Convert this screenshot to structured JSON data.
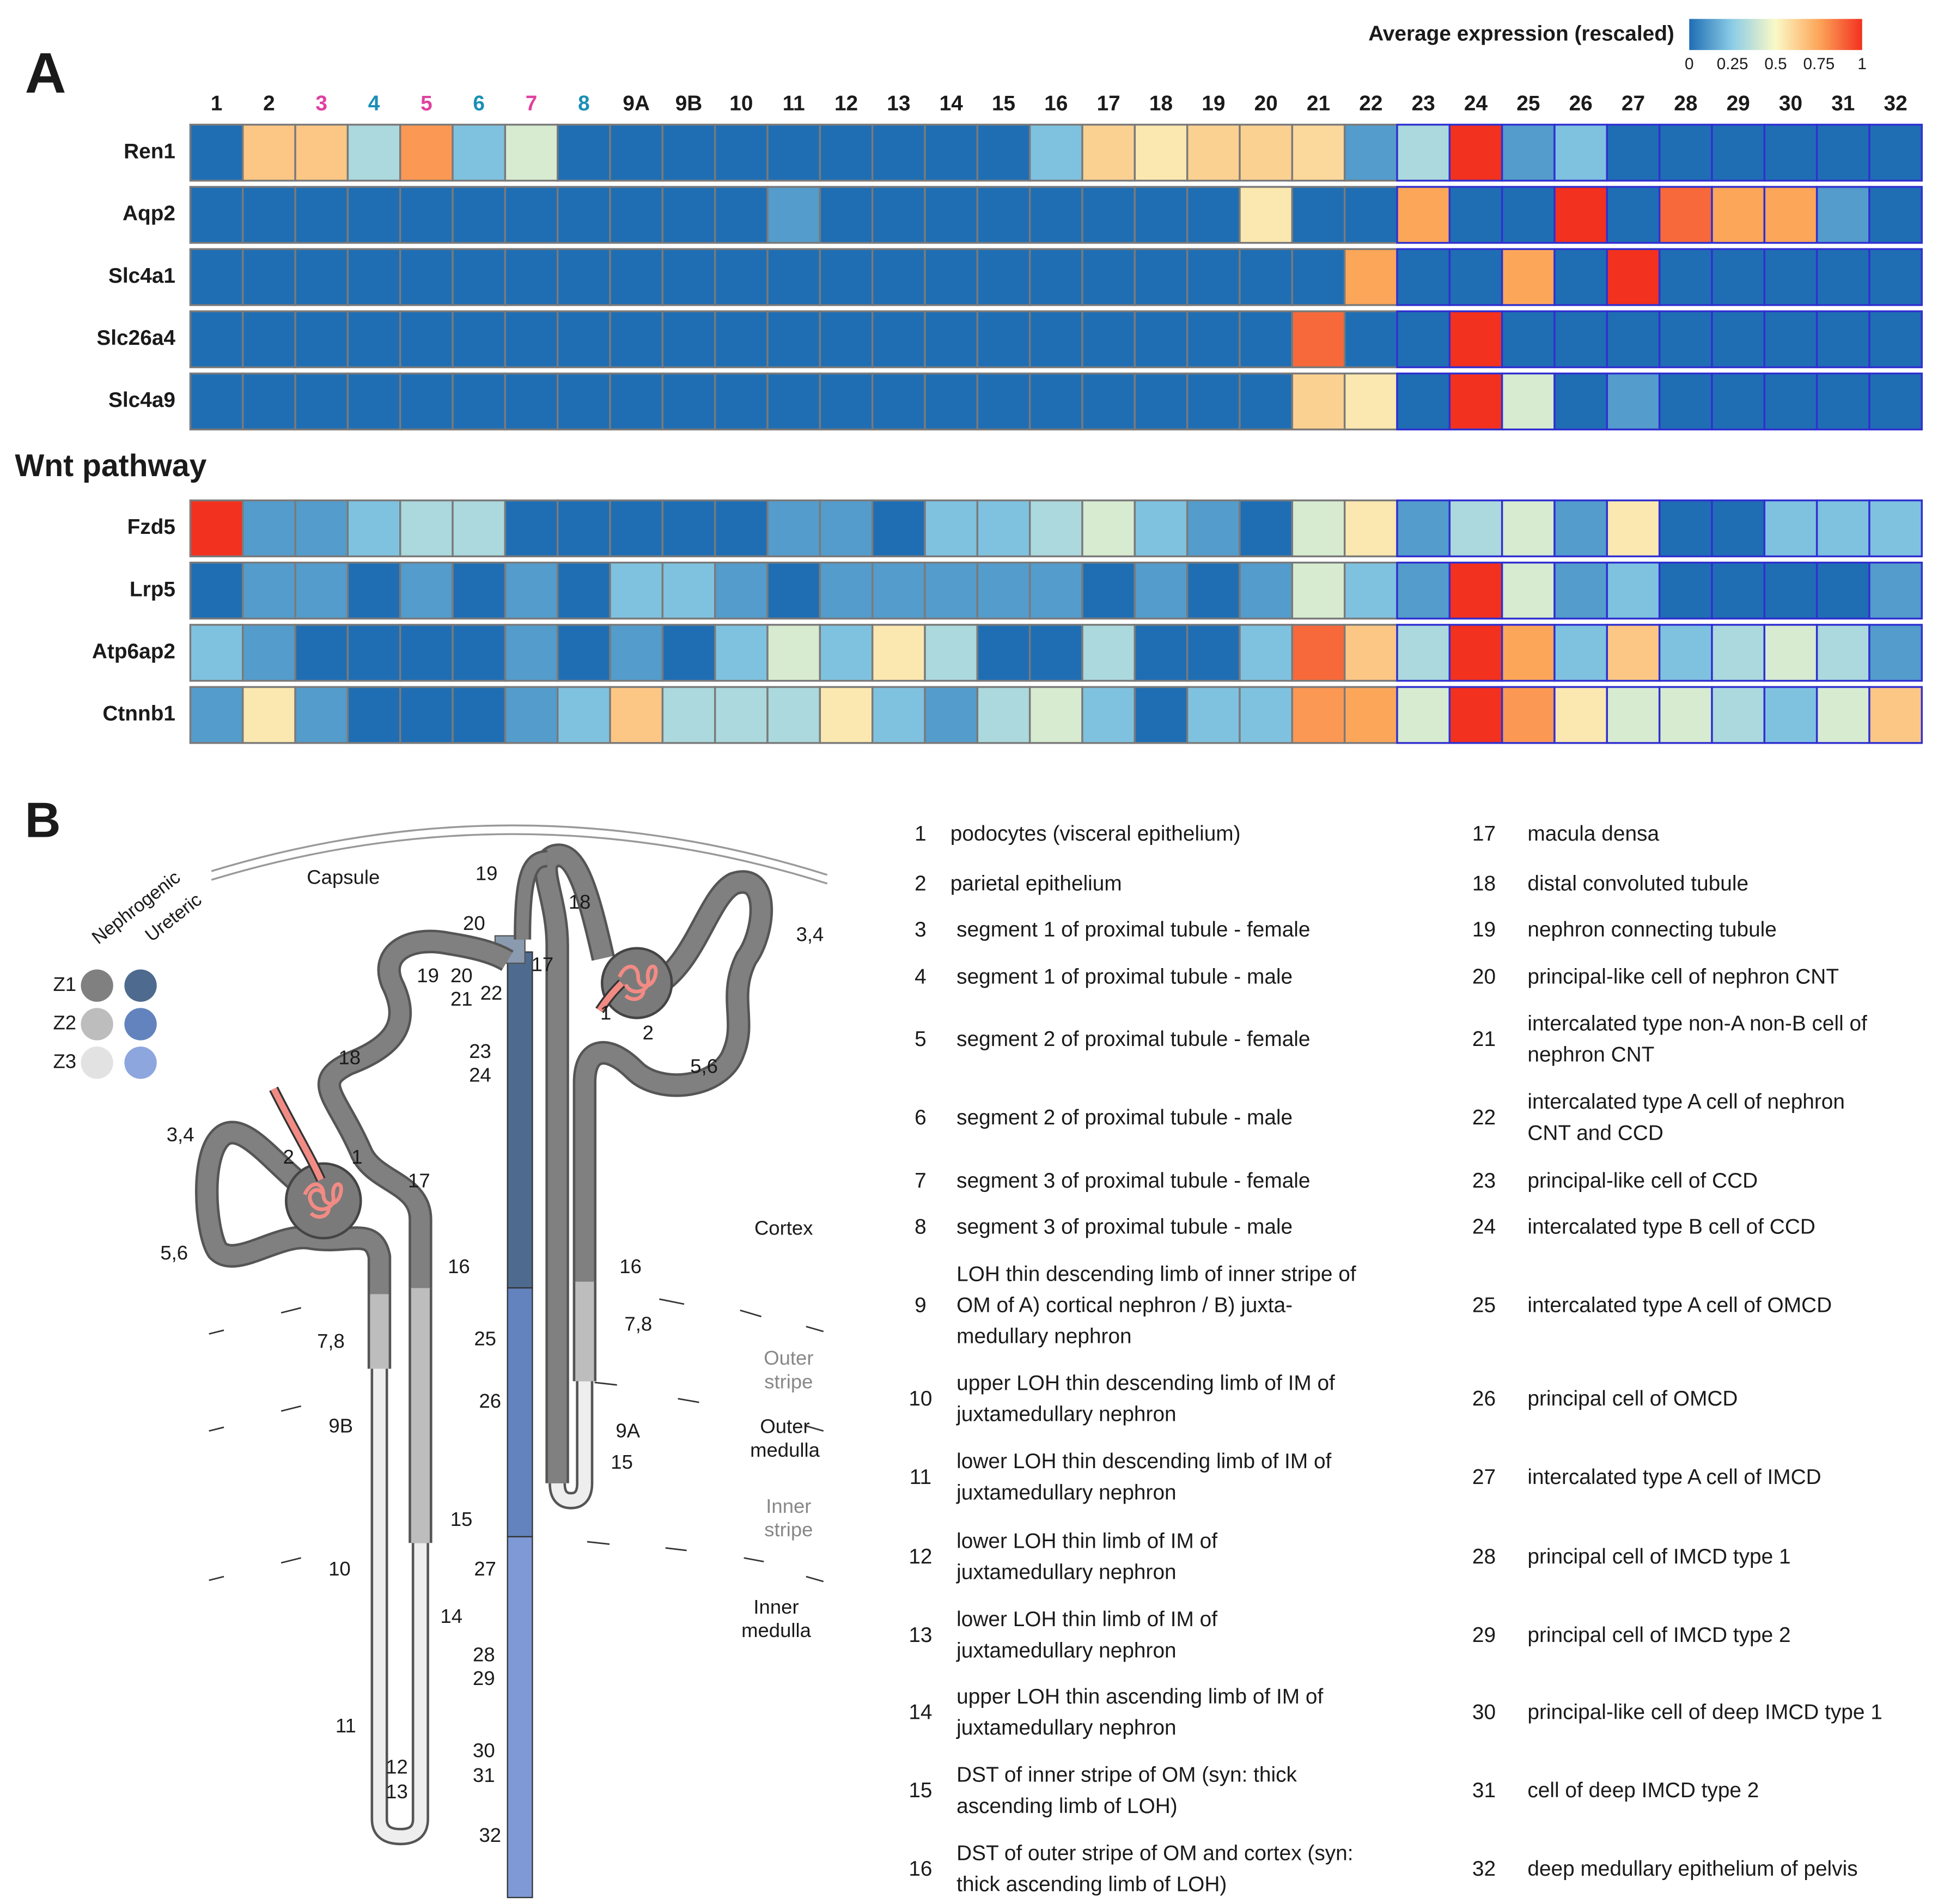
{
  "panel_labels": [
    "A",
    "B"
  ],
  "chart_data": {
    "type": "heatmap",
    "colorbar": {
      "title": "Average expression (rescaled)",
      "ticks": [
        0,
        0.25,
        0.5,
        0.75,
        1
      ],
      "clim": [
        0,
        1
      ],
      "colorscale": [
        "#1f6eb4",
        "#8ccde6",
        "#fbf9c6",
        "#fca65a",
        "#f2311f"
      ]
    },
    "columns": [
      "1",
      "2",
      "3",
      "4",
      "5",
      "6",
      "7",
      "8",
      "9A",
      "9B",
      "10",
      "11",
      "12",
      "13",
      "14",
      "15",
      "16",
      "17",
      "18",
      "19",
      "20",
      "21",
      "22",
      "23",
      "24",
      "25",
      "26",
      "27",
      "28",
      "29",
      "30",
      "31",
      "32"
    ],
    "column_colors": [
      "#1a1a1a",
      "#1a1a1a",
      "#e040a0",
      "#1a8fb5",
      "#e040a0",
      "#1a8fb5",
      "#e040a0",
      "#1a8fb5",
      "#1a1a1a",
      "#1a1a1a",
      "#1a1a1a",
      "#1a1a1a",
      "#1a1a1a",
      "#1a1a1a",
      "#1a1a1a",
      "#1a1a1a",
      "#1a1a1a",
      "#1a1a1a",
      "#1a1a1a",
      "#1a1a1a",
      "#1a1a1a",
      "#1a1a1a",
      "#1a1a1a",
      "#1a1a1a",
      "#1a1a1a",
      "#1a1a1a",
      "#1a1a1a",
      "#1a1a1a",
      "#1a1a1a",
      "#1a1a1a",
      "#1a1a1a",
      "#1a1a1a",
      "#1a1a1a"
    ],
    "column_border_colors": [
      "#7a7a7a",
      "#7a7a7a",
      "#7a7a7a",
      "#7a7a7a",
      "#7a7a7a",
      "#7a7a7a",
      "#7a7a7a",
      "#7a7a7a",
      "#7a7a7a",
      "#7a7a7a",
      "#7a7a7a",
      "#7a7a7a",
      "#7a7a7a",
      "#7a7a7a",
      "#7a7a7a",
      "#7a7a7a",
      "#7a7a7a",
      "#7a7a7a",
      "#7a7a7a",
      "#7a7a7a",
      "#7a7a7a",
      "#7a7a7a",
      "#7a7a7a",
      "#3030d0",
      "#3030d0",
      "#3030d0",
      "#3030d0",
      "#3030d0",
      "#3030d0",
      "#3030d0",
      "#3030d0",
      "#3030d0",
      "#3030d0"
    ],
    "groups": [
      {
        "rows": [
          "Ren1",
          "Aqp2",
          "Slc4a1",
          "Slc26a4",
          "Slc4a9"
        ],
        "values": [
          [
            0,
            0.65,
            0.65,
            0.32,
            0.78,
            0.22,
            0.42,
            0,
            0,
            0,
            0,
            0,
            0,
            0,
            0,
            0,
            0.22,
            0.62,
            0.55,
            0.62,
            0.62,
            0.6,
            0.12,
            0.32,
            1,
            0.12,
            0.22,
            0,
            0,
            0,
            0,
            0,
            0
          ],
          [
            0,
            0,
            0,
            0,
            0,
            0,
            0,
            0,
            0,
            0,
            0,
            0.12,
            0,
            0,
            0,
            0,
            0,
            0,
            0,
            0,
            0.55,
            0,
            0,
            0.75,
            0,
            0,
            1,
            0,
            0.88,
            0.75,
            0.75,
            0.12,
            0
          ],
          [
            0,
            0,
            0,
            0,
            0,
            0,
            0,
            0,
            0,
            0,
            0,
            0,
            0,
            0,
            0,
            0,
            0,
            0,
            0,
            0,
            0,
            0,
            0.75,
            0,
            0,
            0.75,
            0,
            1,
            0,
            0,
            0,
            0,
            0
          ],
          [
            0,
            0,
            0,
            0,
            0,
            0,
            0,
            0,
            0,
            0,
            0,
            0,
            0,
            0,
            0,
            0,
            0,
            0,
            0,
            0,
            0,
            0.88,
            0,
            0,
            1,
            0,
            0,
            0,
            0,
            0,
            0,
            0,
            0
          ],
          [
            0,
            0,
            0,
            0,
            0,
            0,
            0,
            0,
            0,
            0,
            0,
            0,
            0,
            0,
            0,
            0,
            0,
            0,
            0,
            0,
            0,
            0.62,
            0.55,
            0,
            1,
            0.42,
            0,
            0.12,
            0,
            0,
            0,
            0,
            0
          ]
        ]
      },
      {
        "title": "Wnt pathway",
        "rows": [
          "Fzd5",
          "Lrp5",
          "Atp6ap2",
          "Ctnnb1"
        ],
        "values": [
          [
            1,
            0.12,
            0.12,
            0.22,
            0.32,
            0.32,
            0,
            0,
            0,
            0,
            0,
            0.12,
            0.12,
            0,
            0.22,
            0.22,
            0.32,
            0.42,
            0.22,
            0.12,
            0,
            0.42,
            0.55,
            0.12,
            0.32,
            0.42,
            0.12,
            0.55,
            0,
            0,
            0.22,
            0.22,
            0.22
          ],
          [
            0,
            0.12,
            0.12,
            0,
            0.12,
            0,
            0.12,
            0,
            0.22,
            0.22,
            0.12,
            0,
            0.12,
            0.12,
            0.12,
            0.12,
            0.12,
            0,
            0.12,
            0,
            0.12,
            0.42,
            0.22,
            0.12,
            1,
            0.42,
            0.12,
            0.22,
            0,
            0,
            0,
            0,
            0.12
          ],
          [
            0.22,
            0.12,
            0,
            0,
            0,
            0,
            0.12,
            0,
            0.12,
            0,
            0.22,
            0.42,
            0.22,
            0.55,
            0.32,
            0,
            0,
            0.32,
            0,
            0,
            0.22,
            0.88,
            0.65,
            0.32,
            1,
            0.75,
            0.22,
            0.65,
            0.22,
            0.32,
            0.42,
            0.32,
            0.12
          ],
          [
            0.12,
            0.55,
            0.12,
            0,
            0,
            0,
            0.12,
            0.22,
            0.65,
            0.32,
            0.32,
            0.32,
            0.55,
            0.22,
            0.12,
            0.32,
            0.42,
            0.22,
            0,
            0.22,
            0.22,
            0.78,
            0.75,
            0.42,
            1,
            0.78,
            0.55,
            0.42,
            0.42,
            0.32,
            0.22,
            0.42,
            0.65
          ]
        ]
      }
    ]
  },
  "diagram": {
    "capsule": "Capsule",
    "zone_legend": {
      "headers": [
        "Nephrogenic",
        "Ureteric"
      ],
      "zones": [
        "Z1",
        "Z2",
        "Z3"
      ]
    },
    "regions": [
      {
        "lines": [
          "Cortex"
        ]
      },
      {
        "lines": [
          "Outer",
          "stripe"
        ]
      },
      {
        "lines": [
          "Outer",
          "medulla"
        ]
      },
      {
        "lines": [
          "Inner",
          "stripe"
        ]
      },
      {
        "lines": [
          "Inner",
          "medulla"
        ]
      }
    ],
    "labels": [
      "19",
      "20",
      "18",
      "17",
      "3,4",
      "1",
      "2",
      "5,6",
      "19",
      "20",
      "21",
      "22",
      "23",
      "24",
      "18",
      "3,4",
      "2",
      "1",
      "17",
      "5,6",
      "16",
      "16",
      "25",
      "7,8",
      "7,8",
      "26",
      "9B",
      "9A",
      "15",
      "15",
      "10",
      "27",
      "14",
      "28",
      "29",
      "11",
      "30",
      "31",
      "12",
      "13",
      "32"
    ]
  },
  "legend": {
    "items": [
      {
        "id": "1",
        "lines": [
          "podocytes (visceral epithelium)"
        ]
      },
      {
        "id": "2",
        "lines": [
          "parietal epithelium"
        ]
      },
      {
        "id": "3",
        "lines": [
          "segment 1 of proximal tubule - female"
        ]
      },
      {
        "id": "4",
        "lines": [
          "segment 1 of proximal tubule - male"
        ]
      },
      {
        "id": "5",
        "lines": [
          "segment 2 of proximal tubule - female"
        ]
      },
      {
        "id": "6",
        "lines": [
          "segment 2 of proximal tubule - male"
        ]
      },
      {
        "id": "7",
        "lines": [
          "segment 3 of proximal tubule - female"
        ]
      },
      {
        "id": "8",
        "lines": [
          "segment 3 of proximal tubule - male"
        ]
      },
      {
        "id": "9",
        "lines": [
          "LOH thin descending limb of inner stripe of",
          "OM of A) cortical nephron / B) juxta-",
          "medullary nephron"
        ]
      },
      {
        "id": "10",
        "lines": [
          "upper LOH thin descending limb of IM of",
          "juxtamedullary nephron"
        ]
      },
      {
        "id": "11",
        "lines": [
          "lower LOH thin descending limb of IM of",
          "juxtamedullary nephron"
        ]
      },
      {
        "id": "12",
        "lines": [
          "lower LOH thin limb of IM of",
          "juxtamedullary nephron"
        ]
      },
      {
        "id": "13",
        "lines": [
          "lower LOH thin limb of IM of",
          "juxtamedullary nephron"
        ]
      },
      {
        "id": "14",
        "lines": [
          "upper LOH thin ascending limb of IM of",
          "juxtamedullary nephron"
        ]
      },
      {
        "id": "15",
        "lines": [
          "DST of inner stripe of OM (syn: thick",
          "ascending limb of LOH)"
        ]
      },
      {
        "id": "16",
        "lines": [
          "DST of outer stripe of OM and cortex (syn:",
          "thick ascending limb of LOH)"
        ]
      },
      {
        "id": "17",
        "lines": [
          "macula densa"
        ]
      },
      {
        "id": "18",
        "lines": [
          "distal convoluted tubule"
        ]
      },
      {
        "id": "19",
        "lines": [
          "nephron connecting tubule"
        ]
      },
      {
        "id": "20",
        "lines": [
          "principal-like cell of nephron CNT"
        ]
      },
      {
        "id": "21",
        "lines": [
          "intercalated type non-A non-B cell of",
          "nephron CNT"
        ]
      },
      {
        "id": "22",
        "lines": [
          "intercalated type A cell of nephron",
          "CNT and CCD"
        ]
      },
      {
        "id": "23",
        "lines": [
          "principal-like cell of CCD"
        ]
      },
      {
        "id": "24",
        "lines": [
          "intercalated type B cell of CCD"
        ]
      },
      {
        "id": "25",
        "lines": [
          "intercalated type A cell of OMCD"
        ]
      },
      {
        "id": "26",
        "lines": [
          "principal cell of OMCD"
        ]
      },
      {
        "id": "27",
        "lines": [
          "intercalated type A cell of IMCD"
        ]
      },
      {
        "id": "28",
        "lines": [
          "principal cell of IMCD type 1"
        ]
      },
      {
        "id": "29",
        "lines": [
          "principal cell of IMCD type 2"
        ]
      },
      {
        "id": "30",
        "lines": [
          "principal-like cell of deep IMCD type 1"
        ]
      },
      {
        "id": "31",
        "lines": [
          "cell of deep IMCD type 2"
        ]
      },
      {
        "id": "32",
        "lines": [
          "deep medullary epithelium of pelvis"
        ]
      }
    ]
  }
}
